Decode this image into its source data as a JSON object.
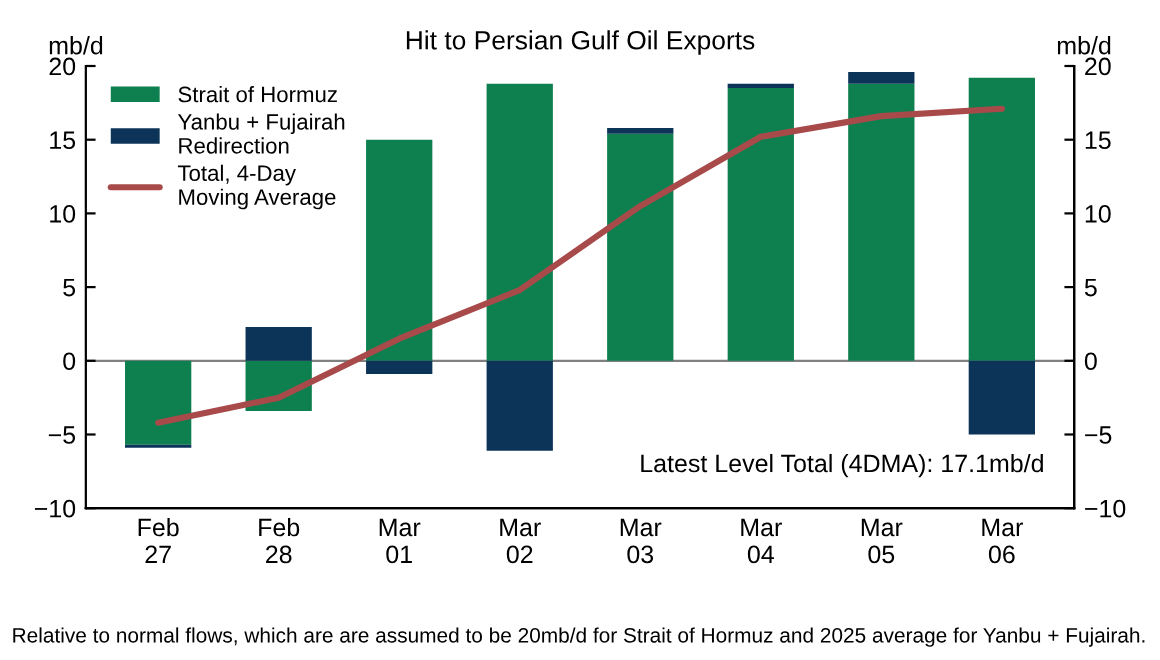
{
  "chart_data": {
    "type": "bar",
    "stacked": true,
    "title": "Hit to Persian Gulf Oil Exports",
    "ylabel": "mb/d",
    "y2label": "mb/d",
    "categories": [
      "Feb\n27",
      "Feb\n28",
      "Mar\n01",
      "Mar\n02",
      "Mar\n03",
      "Mar\n04",
      "Mar\n05",
      "Mar\n06"
    ],
    "series": [
      {
        "name": "Strait of Hormuz",
        "color": "#0e8050",
        "values": [
          -5.7,
          -3.4,
          15.0,
          18.8,
          15.4,
          18.5,
          18.8,
          19.2
        ]
      },
      {
        "name": "Yanbu + Fujairah\nRedirection",
        "color": "#0c3358",
        "values": [
          -0.2,
          2.3,
          -0.9,
          -6.1,
          0.4,
          0.3,
          0.8,
          -5.0
        ]
      },
      {
        "name": "Total, 4-Day\nMoving Average",
        "type": "line",
        "color": "#a84a4a",
        "values": [
          -4.2,
          -2.5,
          1.5,
          4.8,
          10.5,
          15.2,
          16.6,
          17.1
        ]
      }
    ],
    "ylim": [
      -10,
      20
    ],
    "yticks": [
      -10,
      -5,
      0,
      5,
      10,
      15,
      20
    ],
    "y2lim": [
      -10,
      20
    ],
    "y2ticks": [
      -10,
      -5,
      0,
      5,
      10,
      15,
      20
    ],
    "ref_lines": [
      {
        "axis": "y",
        "value": 0,
        "color": "#808080"
      }
    ],
    "grid": false,
    "legend": "top left",
    "annotations": [
      "Latest Level Total (4DMA): 17.1mb/d",
      "Relative to normal flows, which are are assumed to be 20mb/d for Strait of Hormuz and 2025 average for Yanbu + Fujairah."
    ]
  }
}
